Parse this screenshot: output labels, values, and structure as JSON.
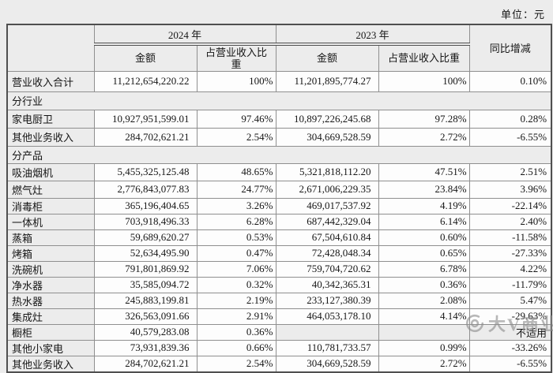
{
  "unit_label": "单位：元",
  "table": {
    "col_headers": {
      "year_2024": "2024 年",
      "year_2023": "2023 年",
      "amount_2024": "金额",
      "pct_2024": "占营业收入比重",
      "amount_2023": "金额",
      "pct_2023": "占营业收入比重",
      "yoy": "同比增减"
    },
    "rows": [
      {
        "type": "data",
        "label": "营业收入合计",
        "v2024": "11,212,654,220.22",
        "p2024": "100%",
        "v2023": "11,201,895,774.27",
        "p2023": "100%",
        "yoy": "0.10%"
      },
      {
        "type": "section",
        "label": "分行业"
      },
      {
        "type": "data",
        "label": "家电厨卫",
        "v2024": "10,927,951,599.01",
        "p2024": "97.46%",
        "v2023": "10,897,226,245.68",
        "p2023": "97.28%",
        "yoy": "0.28%"
      },
      {
        "type": "data",
        "label": "其他业务收入",
        "v2024": "284,702,621.21",
        "p2024": "2.54%",
        "v2023": "304,669,528.59",
        "p2023": "2.72%",
        "yoy": "-6.55%"
      },
      {
        "type": "section",
        "label": "分产品"
      },
      {
        "type": "data",
        "label": "吸油烟机",
        "v2024": "5,455,325,125.48",
        "p2024": "48.65%",
        "v2023": "5,321,818,112.20",
        "p2023": "47.51%",
        "yoy": "2.51%"
      },
      {
        "type": "data",
        "label": "燃气灶",
        "v2024": "2,776,843,077.83",
        "p2024": "24.77%",
        "v2023": "2,671,006,229.35",
        "p2023": "23.84%",
        "yoy": "3.96%"
      },
      {
        "type": "data",
        "label": "消毒柜",
        "v2024": "365,196,404.65",
        "p2024": "3.26%",
        "v2023": "469,017,537.92",
        "p2023": "4.19%",
        "yoy": "-22.14%"
      },
      {
        "type": "data",
        "label": "一体机",
        "v2024": "703,918,496.33",
        "p2024": "6.28%",
        "v2023": "687,442,329.04",
        "p2023": "6.14%",
        "yoy": "2.40%"
      },
      {
        "type": "data",
        "label": "蒸箱",
        "v2024": "59,689,620.27",
        "p2024": "0.53%",
        "v2023": "67,504,610.84",
        "p2023": "0.60%",
        "yoy": "-11.58%"
      },
      {
        "type": "data",
        "label": "烤箱",
        "v2024": "52,634,495.90",
        "p2024": "0.47%",
        "v2023": "72,428,048.34",
        "p2023": "0.65%",
        "yoy": "-27.33%"
      },
      {
        "type": "data",
        "label": "洗碗机",
        "v2024": "791,801,869.92",
        "p2024": "7.06%",
        "v2023": "759,704,720.62",
        "p2023": "6.78%",
        "yoy": "4.22%"
      },
      {
        "type": "data",
        "label": "净水器",
        "v2024": "35,585,094.72",
        "p2024": "0.32%",
        "v2023": "40,342,365.31",
        "p2023": "0.36%",
        "yoy": "-11.79%"
      },
      {
        "type": "data",
        "label": "热水器",
        "v2024": "245,883,199.81",
        "p2024": "2.19%",
        "v2023": "233,127,380.39",
        "p2023": "2.08%",
        "yoy": "5.47%"
      },
      {
        "type": "data",
        "label": "集成灶",
        "v2024": "326,563,091.66",
        "p2024": "2.91%",
        "v2023": "464,053,178.10",
        "p2023": "4.14%",
        "yoy": "-29.63%"
      },
      {
        "type": "data",
        "label": "橱柜",
        "v2024": "40,579,283.08",
        "p2024": "0.36%",
        "v2023": "",
        "p2023": "",
        "yoy": "不适用"
      },
      {
        "type": "data",
        "label": "其他小家电",
        "v2024": "73,931,839.36",
        "p2024": "0.66%",
        "v2023": "110,781,733.57",
        "p2023": "0.99%",
        "yoy": "-33.26%"
      },
      {
        "type": "data",
        "label": "其他业务收入",
        "v2024": "284,702,621.21",
        "p2024": "2.54%",
        "v2023": "304,669,528.59",
        "p2023": "2.72%",
        "yoy": "-6.55%"
      }
    ]
  },
  "watermark": {
    "text": "大V商业"
  },
  "colors": {
    "page_background": "#ececec",
    "cell_highlight": "#fdfdfd",
    "border": "#8f8f8f",
    "outer_border": "#4f4f4f",
    "text": "#161616",
    "watermark": "#8c8c8c"
  }
}
